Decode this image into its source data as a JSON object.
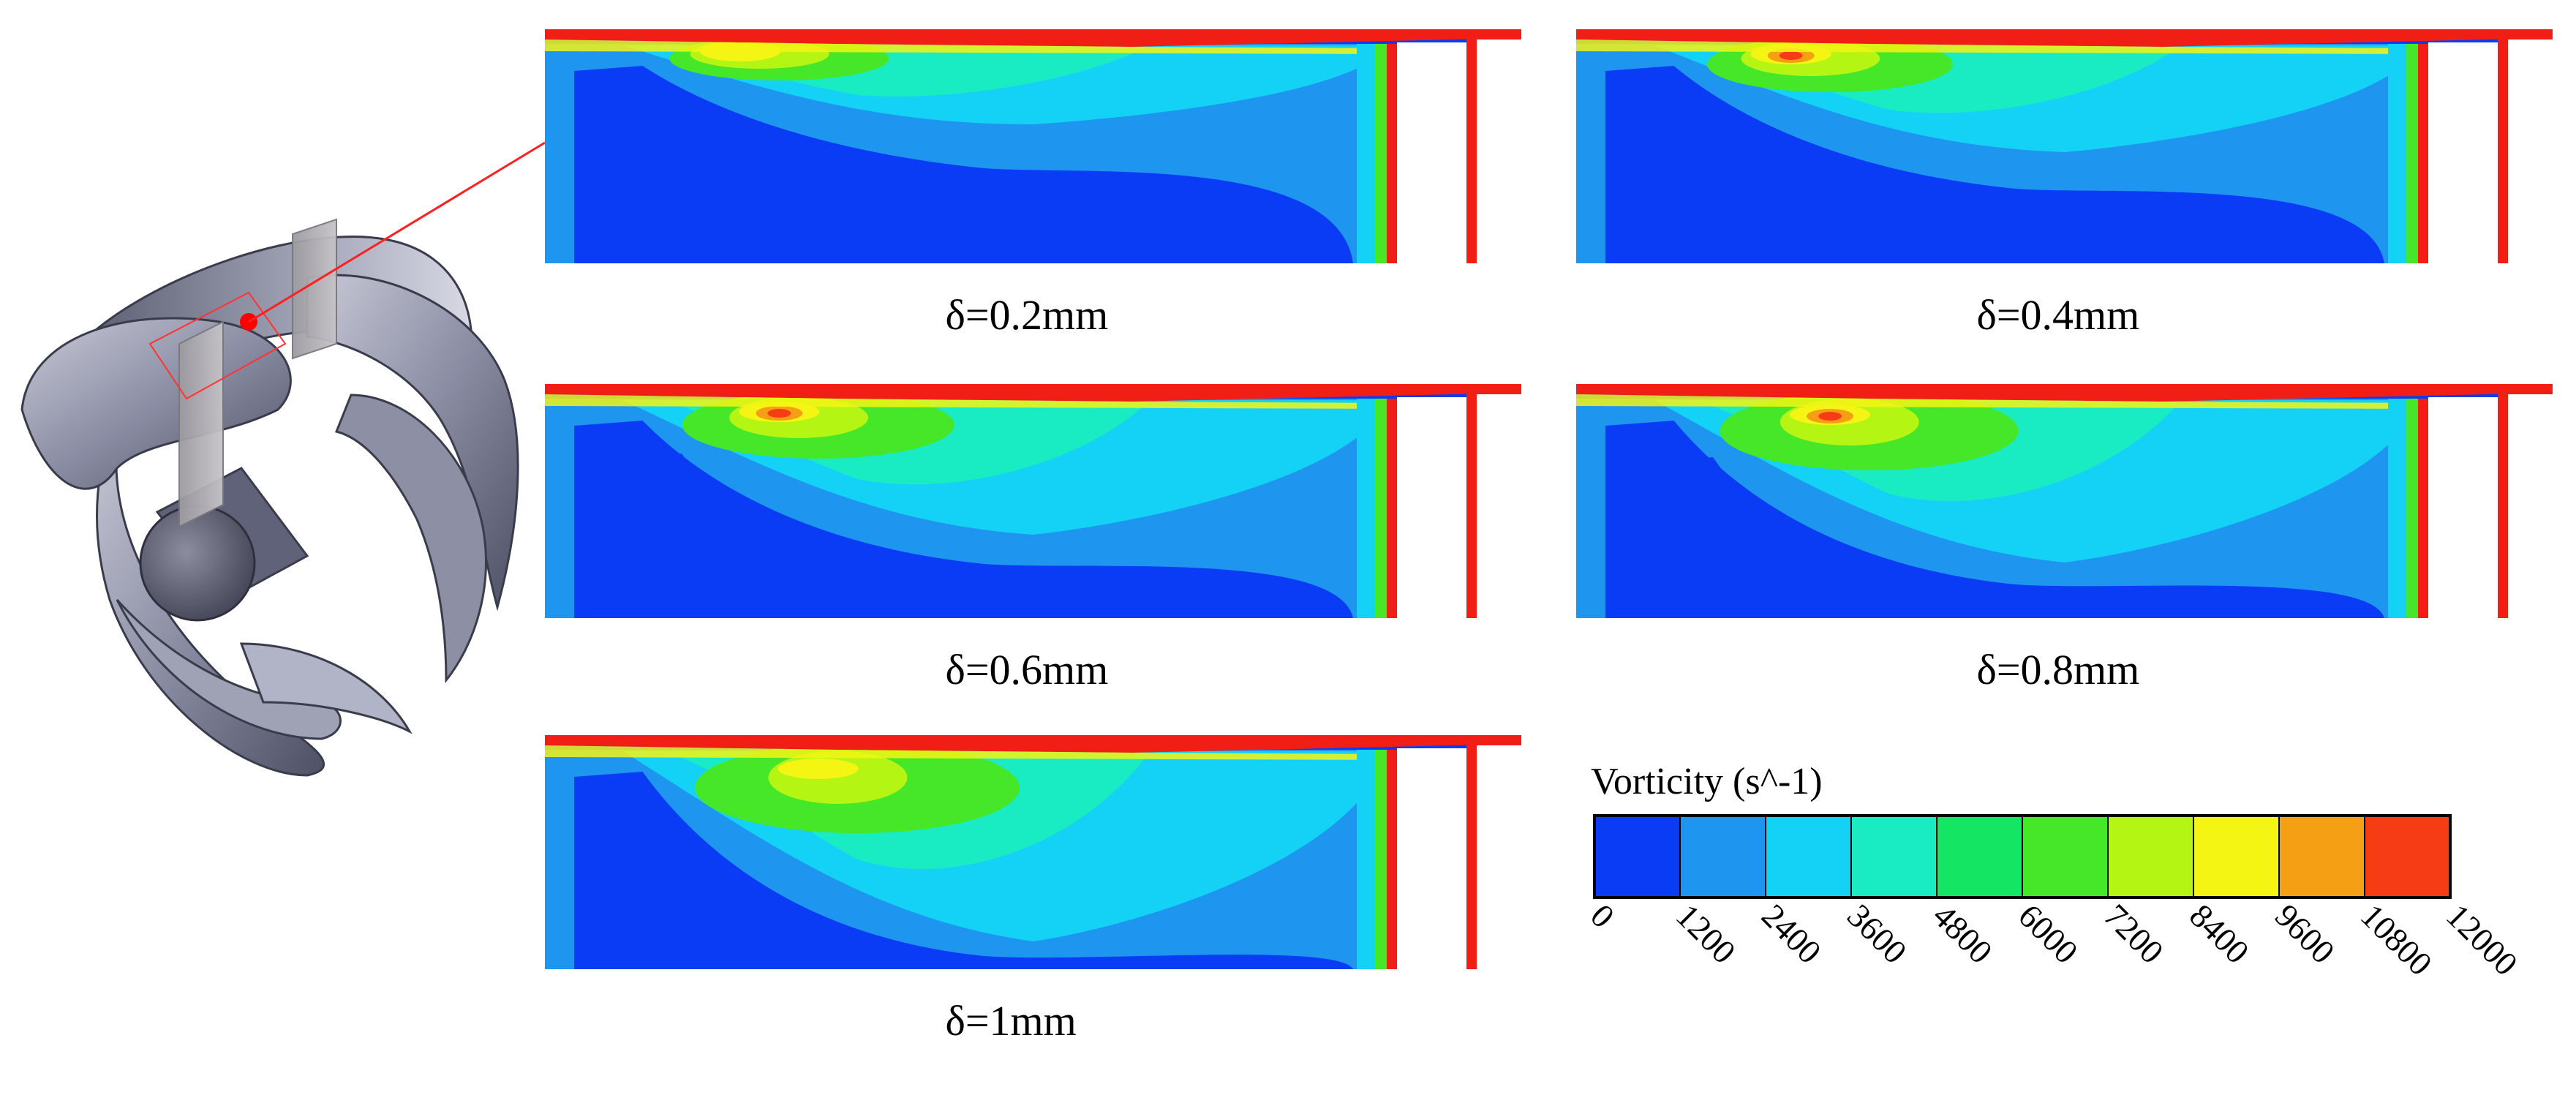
{
  "panels": [
    {
      "caption": "δ=0.2mm",
      "variant": 0
    },
    {
      "caption": "δ=0.4mm",
      "variant": 1
    },
    {
      "caption": "δ=0.6mm",
      "variant": 2
    },
    {
      "caption": "δ=0.8mm",
      "variant": 3
    },
    {
      "caption": "δ=1mm",
      "variant": 4
    }
  ],
  "legend": {
    "title": "Vorticity (s^-1)",
    "ticks": [
      "0",
      "1200",
      "2400",
      "3600",
      "4800",
      "6000",
      "7200",
      "8400",
      "9600",
      "10800",
      "12000"
    ],
    "colors": [
      "#0a3cf5",
      "#1e96f0",
      "#14d2f5",
      "#19ebc3",
      "#14e664",
      "#46e628",
      "#b4f514",
      "#f5f514",
      "#f5a014",
      "#f53c14"
    ]
  },
  "colors": {
    "zone_red": "#f01e14",
    "marker": "#ff0000",
    "metal": "#7c7f92"
  }
}
